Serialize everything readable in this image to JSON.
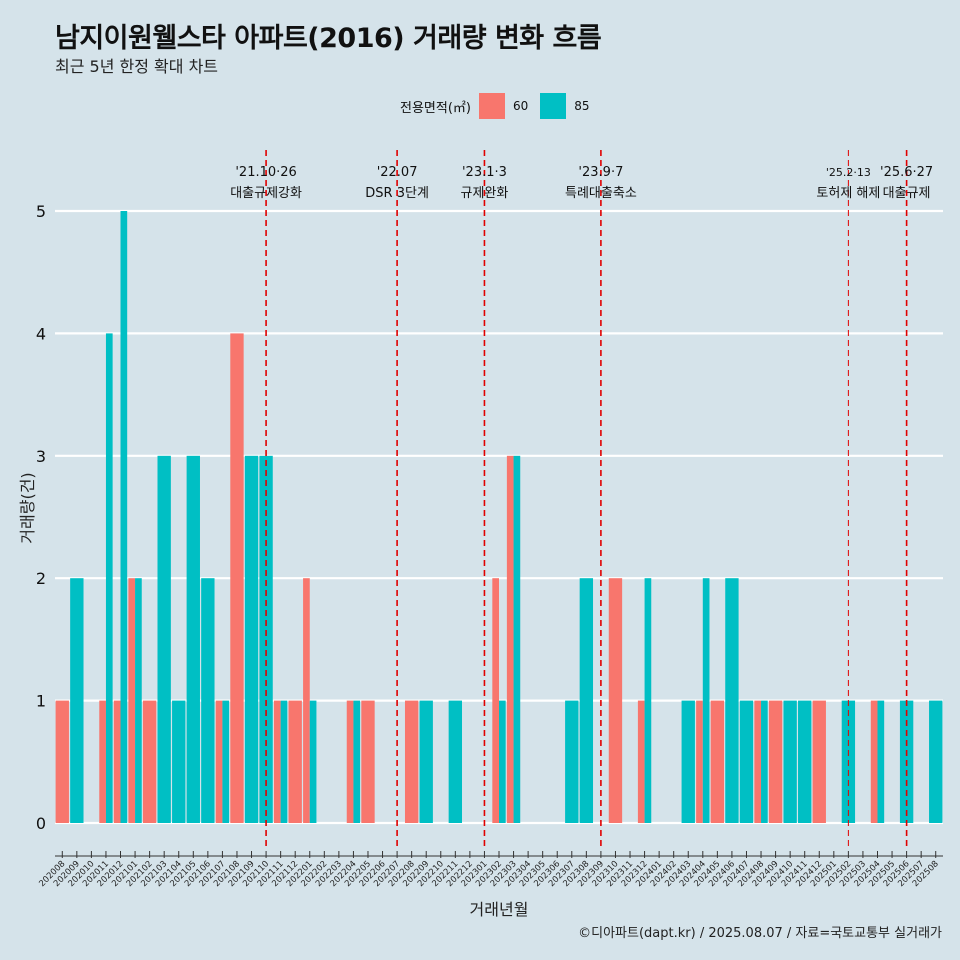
{
  "title": "남지이원웰스타 아파트(2016) 거래량 변화 흐름",
  "subtitle": "최근 5년 한정 확대 차트",
  "legend": {
    "title": "전용면적(㎡)",
    "items": [
      {
        "label": "60",
        "color": "#f8766d"
      },
      {
        "label": "85",
        "color": "#00bfc4"
      }
    ]
  },
  "caption": "©디아파트(dapt.kr) / 2025.08.07 / 자료=국토교통부 실거래가",
  "chart_data": {
    "type": "bar",
    "title": "남지이원웰스타 아파트(2016) 거래량 변화 흐름",
    "xlabel": "거래년월",
    "ylabel": "거래량(건)",
    "ylim": [
      0,
      5
    ],
    "yticks": [
      0,
      1,
      2,
      3,
      4,
      5
    ],
    "categories": [
      "202008",
      "202009",
      "202010",
      "202011",
      "202012",
      "202101",
      "202102",
      "202103",
      "202104",
      "202105",
      "202106",
      "202107",
      "202108",
      "202109",
      "202110",
      "202111",
      "202112",
      "202201",
      "202202",
      "202203",
      "202204",
      "202205",
      "202206",
      "202207",
      "202208",
      "202209",
      "202210",
      "202211",
      "202212",
      "202301",
      "202302",
      "202303",
      "202304",
      "202305",
      "202306",
      "202307",
      "202308",
      "202309",
      "202310",
      "202311",
      "202312",
      "202401",
      "202402",
      "202403",
      "202404",
      "202405",
      "202406",
      "202407",
      "202408",
      "202409",
      "202410",
      "202411",
      "202412",
      "202501",
      "202502",
      "202503",
      "202504",
      "202505",
      "202506",
      "202507",
      "202508"
    ],
    "series": [
      {
        "name": "60",
        "color": "#f8766d",
        "values": [
          1,
          0,
          0,
          1,
          1,
          2,
          1,
          0,
          0,
          0,
          0,
          1,
          4,
          0,
          0,
          1,
          1,
          2,
          0,
          0,
          1,
          1,
          0,
          0,
          1,
          0,
          0,
          0,
          0,
          0,
          2,
          3,
          0,
          0,
          0,
          0,
          0,
          0,
          2,
          0,
          1,
          0,
          0,
          0,
          1,
          1,
          0,
          0,
          1,
          1,
          0,
          0,
          1,
          0,
          0,
          0,
          1,
          0,
          0,
          0,
          0
        ]
      },
      {
        "name": "85",
        "color": "#00bfc4",
        "values": [
          0,
          2,
          0,
          4,
          5,
          2,
          0,
          3,
          1,
          3,
          2,
          1,
          0,
          3,
          3,
          1,
          0,
          1,
          0,
          0,
          1,
          0,
          0,
          0,
          0,
          1,
          0,
          1,
          0,
          0,
          1,
          3,
          0,
          0,
          0,
          1,
          2,
          0,
          0,
          0,
          2,
          0,
          0,
          1,
          2,
          0,
          2,
          1,
          1,
          0,
          1,
          1,
          0,
          0,
          1,
          0,
          1,
          0,
          1,
          0,
          1
        ]
      }
    ],
    "events": [
      {
        "at": "202110",
        "date": "'21.10·26",
        "label": "대출규제강화"
      },
      {
        "at": "202207",
        "date": "'22.07",
        "label": "DSR 3단계"
      },
      {
        "at": "202301",
        "date": "'23.1·3",
        "label": "규제완화"
      },
      {
        "at": "202309",
        "date": "'23.9·7",
        "label": "특례대출축소"
      },
      {
        "at": "202502",
        "date": "'25.2·13",
        "label": "토허제 해제"
      },
      {
        "at": "202506",
        "date": "'25.6·27",
        "label": "대출규제"
      }
    ]
  }
}
